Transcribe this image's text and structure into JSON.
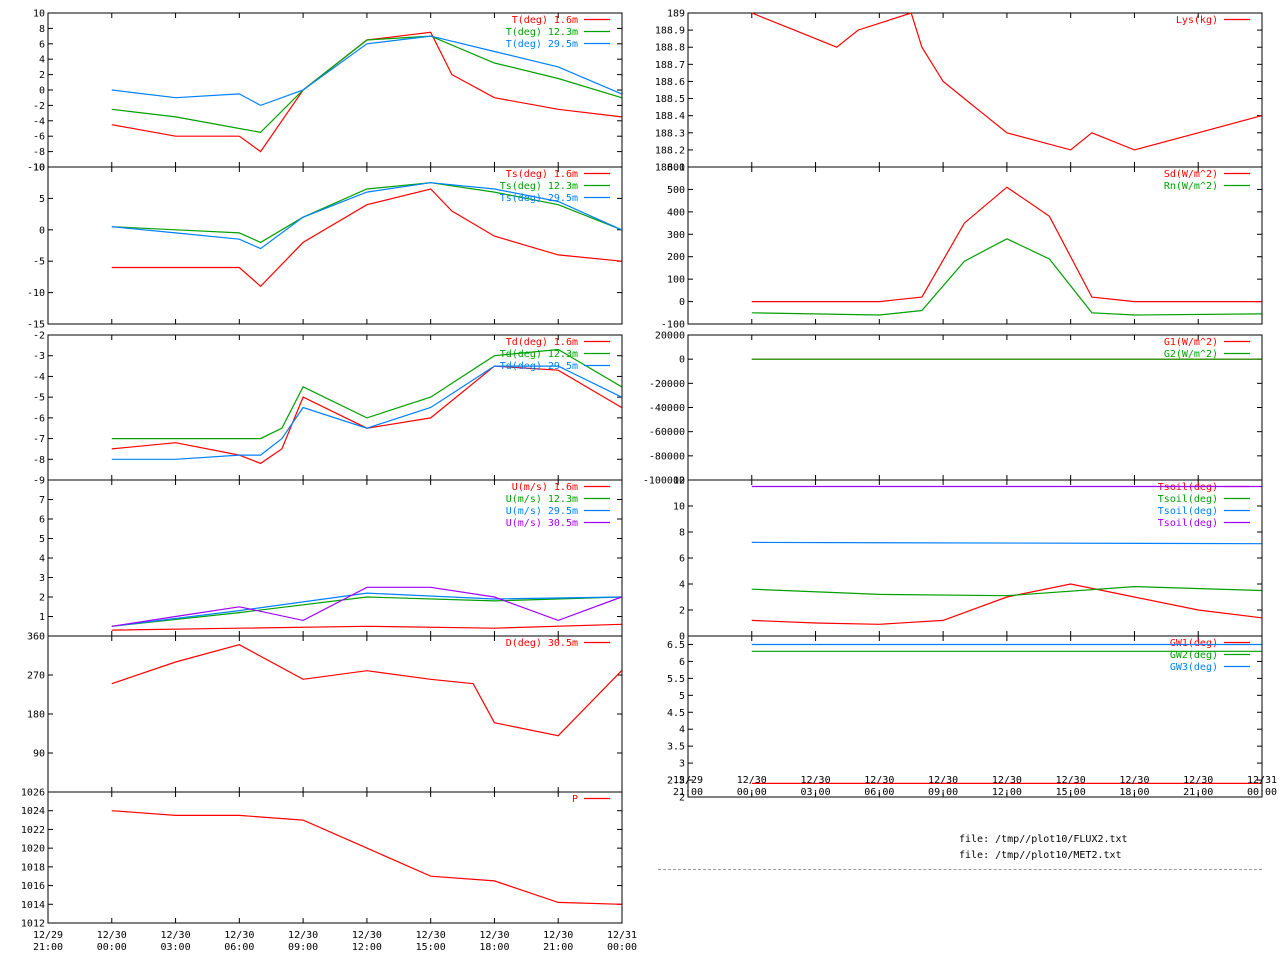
{
  "colors": {
    "red": "#ff0000",
    "green": "#00a000",
    "blue": "#0080ff",
    "magenta": "#a000ff",
    "gray": "#999999"
  },
  "files": [
    "file: /tmp//plot10/FLUX2.txt",
    "file: /tmp//plot10/MET2.txt"
  ],
  "time_axis_left": {
    "dates": [
      "12/29",
      "12/30",
      "12/30",
      "12/30",
      "12/30",
      "12/30",
      "12/30",
      "12/30",
      "12/30",
      "12/31"
    ],
    "times": [
      "21:00",
      "00:00",
      "03:00",
      "06:00",
      "09:00",
      "12:00",
      "15:00",
      "18:00",
      "21:00",
      "00:00"
    ]
  },
  "time_axis_right": {
    "dates": [
      "12/29",
      "12/30",
      "12/30",
      "12/30",
      "12/30",
      "12/30",
      "12/30",
      "12/30",
      "12/30",
      "12/31"
    ],
    "times": [
      "21:00",
      "00:00",
      "03:00",
      "06:00",
      "09:00",
      "12:00",
      "15:00",
      "18:00",
      "21:00",
      "00:00"
    ]
  },
  "chart_data": [
    {
      "type": "line",
      "id": "T",
      "ylim": [
        -10,
        10
      ],
      "yticks": [
        "-10",
        "-8",
        "-6",
        "-4",
        "-2",
        "0",
        "2",
        "4",
        "6",
        "8",
        "10"
      ],
      "series": [
        {
          "name": "T(deg)  1.6m",
          "color": "red",
          "x": [
            "00:00",
            "03:00",
            "06:00",
            "07:00",
            "09:00",
            "12:00",
            "15:00",
            "16:00",
            "18:00",
            "21:00",
            "23:59"
          ],
          "values": [
            -4.5,
            -6,
            -6,
            -8,
            0,
            6.5,
            7.5,
            2,
            -1,
            -2.5,
            -3.5
          ]
        },
        {
          "name": "T(deg) 12.3m",
          "color": "green",
          "x": [
            "00:00",
            "03:00",
            "06:00",
            "07:00",
            "09:00",
            "12:00",
            "15:00",
            "18:00",
            "21:00",
            "23:59"
          ],
          "values": [
            -2.5,
            -3.5,
            -5,
            -5.5,
            0,
            6.5,
            7,
            3.5,
            1.5,
            -1
          ]
        },
        {
          "name": "T(deg) 29.5m",
          "color": "blue",
          "x": [
            "00:00",
            "03:00",
            "06:00",
            "07:00",
            "09:00",
            "12:00",
            "15:00",
            "18:00",
            "21:00",
            "23:59"
          ],
          "values": [
            0,
            -1,
            -0.5,
            -2,
            0,
            6,
            7,
            5,
            3,
            -0.5
          ]
        }
      ]
    },
    {
      "type": "line",
      "id": "Ts",
      "ylim": [
        -15,
        10
      ],
      "yticks": [
        "-15",
        "-10",
        "-5",
        "0",
        "5",
        "10"
      ],
      "series": [
        {
          "name": "Ts(deg)  1.6m",
          "color": "red",
          "x": [
            "00:00",
            "03:00",
            "06:00",
            "07:00",
            "09:00",
            "12:00",
            "15:00",
            "16:00",
            "18:00",
            "21:00",
            "23:59"
          ],
          "values": [
            -6,
            -6,
            -6,
            -9,
            -2,
            4,
            6.5,
            3,
            -1,
            -4,
            -5
          ]
        },
        {
          "name": "Ts(deg) 12.3m",
          "color": "green",
          "x": [
            "00:00",
            "03:00",
            "06:00",
            "07:00",
            "09:00",
            "12:00",
            "15:00",
            "18:00",
            "21:00",
            "23:59"
          ],
          "values": [
            0.5,
            0,
            -0.5,
            -2,
            2,
            6.5,
            7.5,
            6,
            4,
            0
          ]
        },
        {
          "name": "Ts(deg) 29.5m",
          "color": "blue",
          "x": [
            "00:00",
            "03:00",
            "06:00",
            "07:00",
            "09:00",
            "12:00",
            "15:00",
            "18:00",
            "21:00",
            "23:59"
          ],
          "values": [
            0.5,
            -0.5,
            -1.5,
            -3,
            2,
            6,
            7.5,
            6.5,
            4.5,
            0
          ]
        }
      ]
    },
    {
      "type": "line",
      "id": "Td",
      "ylim": [
        -9,
        -2
      ],
      "yticks": [
        "-9",
        "-8",
        "-7",
        "-6",
        "-5",
        "-4",
        "-3",
        "-2"
      ],
      "series": [
        {
          "name": "Td(deg)  1.6m",
          "color": "red",
          "x": [
            "00:00",
            "03:00",
            "06:00",
            "07:00",
            "08:00",
            "09:00",
            "12:00",
            "15:00",
            "18:00",
            "21:00",
            "23:59"
          ],
          "values": [
            -7.5,
            -7.2,
            -7.8,
            -8.2,
            -7.5,
            -5,
            -6.5,
            -6,
            -3.5,
            -3.7,
            -5.5
          ]
        },
        {
          "name": "Td(deg) 12.3m",
          "color": "green",
          "x": [
            "00:00",
            "03:00",
            "06:00",
            "07:00",
            "08:00",
            "09:00",
            "12:00",
            "15:00",
            "18:00",
            "21:00",
            "23:59"
          ],
          "values": [
            -7,
            -7,
            -7,
            -7,
            -6.5,
            -4.5,
            -6,
            -5,
            -3,
            -2.7,
            -4.5
          ]
        },
        {
          "name": "Td(deg) 29.5m",
          "color": "blue",
          "x": [
            "00:00",
            "03:00",
            "06:00",
            "07:00",
            "08:00",
            "09:00",
            "12:00",
            "15:00",
            "18:00",
            "21:00",
            "23:59"
          ],
          "values": [
            -8,
            -8,
            -7.8,
            -7.8,
            -7,
            -5.5,
            -6.5,
            -5.5,
            -3.5,
            -3.5,
            -5
          ]
        }
      ]
    },
    {
      "type": "line",
      "id": "U",
      "ylim": [
        0,
        8
      ],
      "yticks": [
        "1",
        "2",
        "3",
        "4",
        "5",
        "6",
        "7"
      ],
      "series": [
        {
          "name": "U(m/s)  1.6m",
          "color": "red",
          "x": [
            "00:00",
            "06:00",
            "12:00",
            "18:00",
            "23:59"
          ],
          "values": [
            0.3,
            0.4,
            0.5,
            0.4,
            0.6
          ]
        },
        {
          "name": "U(m/s) 12.3m",
          "color": "green",
          "x": [
            "00:00",
            "06:00",
            "12:00",
            "18:00",
            "23:59"
          ],
          "values": [
            0.5,
            1.2,
            2,
            1.8,
            2
          ]
        },
        {
          "name": "U(m/s) 29.5m",
          "color": "blue",
          "x": [
            "00:00",
            "06:00",
            "12:00",
            "18:00",
            "23:59"
          ],
          "values": [
            0.5,
            1.3,
            2.2,
            1.9,
            2
          ]
        },
        {
          "name": "U(m/s) 30.5m",
          "color": "magenta",
          "x": [
            "00:00",
            "03:00",
            "06:00",
            "09:00",
            "12:00",
            "15:00",
            "18:00",
            "21:00",
            "23:59"
          ],
          "values": [
            0.5,
            1,
            1.5,
            0.8,
            2.5,
            2.5,
            2,
            0.8,
            2
          ]
        }
      ]
    },
    {
      "type": "line",
      "id": "D",
      "ylim": [
        0,
        360
      ],
      "yticks": [
        "90",
        "180",
        "270",
        "360"
      ],
      "series": [
        {
          "name": "D(deg)  30.5m",
          "color": "red",
          "x": [
            "00:00",
            "03:00",
            "06:00",
            "09:00",
            "12:00",
            "15:00",
            "17:00",
            "18:00",
            "21:00",
            "23:59"
          ],
          "values": [
            250,
            300,
            340,
            260,
            280,
            260,
            250,
            160,
            130,
            280
          ]
        }
      ]
    },
    {
      "type": "line",
      "id": "P",
      "ylim": [
        1012,
        1026
      ],
      "yticks": [
        "1012",
        "1014",
        "1016",
        "1018",
        "1020",
        "1022",
        "1024",
        "1026"
      ],
      "series": [
        {
          "name": "P",
          "color": "red",
          "x": [
            "00:00",
            "03:00",
            "06:00",
            "09:00",
            "12:00",
            "15:00",
            "18:00",
            "21:00",
            "23:59"
          ],
          "values": [
            1024,
            1023.5,
            1023.5,
            1023,
            1020,
            1017,
            1016.5,
            1014.2,
            1014
          ]
        }
      ]
    },
    {
      "type": "line",
      "id": "Lys",
      "ylim": [
        188.1,
        189
      ],
      "yticks": [
        "188.1",
        "188.2",
        "188.3",
        "188.4",
        "188.5",
        "188.6",
        "188.7",
        "188.8",
        "188.9",
        "189"
      ],
      "series": [
        {
          "name": "Lys(kg)",
          "color": "red",
          "x": [
            "00:00",
            "02:00",
            "04:00",
            "05:00",
            "07:30",
            "08:00",
            "09:00",
            "10:00",
            "11:00",
            "12:00",
            "15:00",
            "16:00",
            "18:00",
            "21:00",
            "23:59"
          ],
          "values": [
            189,
            188.9,
            188.8,
            188.9,
            189,
            188.8,
            188.6,
            188.5,
            188.4,
            188.3,
            188.2,
            188.3,
            188.2,
            188.3,
            188.4
          ]
        }
      ]
    },
    {
      "type": "line",
      "id": "Rad",
      "ylim": [
        -100,
        600
      ],
      "yticks": [
        "-100",
        "0",
        "100",
        "200",
        "300",
        "400",
        "500",
        "600"
      ],
      "series": [
        {
          "name": "Sd(W/m^2)",
          "color": "red",
          "x": [
            "00:00",
            "06:00",
            "08:00",
            "10:00",
            "12:00",
            "14:00",
            "16:00",
            "18:00",
            "23:59"
          ],
          "values": [
            0,
            0,
            20,
            350,
            510,
            380,
            20,
            0,
            0
          ]
        },
        {
          "name": "Rn(W/m^2)",
          "color": "green",
          "x": [
            "00:00",
            "06:00",
            "08:00",
            "10:00",
            "12:00",
            "14:00",
            "16:00",
            "18:00",
            "23:59"
          ],
          "values": [
            -50,
            -60,
            -40,
            180,
            280,
            190,
            -50,
            -60,
            -55
          ]
        }
      ]
    },
    {
      "type": "line",
      "id": "G",
      "ylim": [
        -100000,
        20000
      ],
      "yticks": [
        "-100000",
        "-80000",
        "-60000",
        "-40000",
        "-20000",
        "0",
        "20000"
      ],
      "series": [
        {
          "name": "G1(W/m^2)",
          "color": "red",
          "x": [
            "00:00",
            "23:59"
          ],
          "values": [
            0,
            0
          ]
        },
        {
          "name": "G2(W/m^2)",
          "color": "green",
          "x": [
            "00:00",
            "23:59"
          ],
          "values": [
            0,
            0
          ]
        }
      ]
    },
    {
      "type": "line",
      "id": "Tsoil",
      "ylim": [
        0,
        12
      ],
      "yticks": [
        "0",
        "2",
        "4",
        "6",
        "8",
        "10",
        "12"
      ],
      "series": [
        {
          "name": "Tsoil(deg)",
          "color": "red",
          "x": [
            "00:00",
            "03:00",
            "06:00",
            "09:00",
            "12:00",
            "15:00",
            "18:00",
            "21:00",
            "23:59"
          ],
          "values": [
            1.2,
            1,
            0.9,
            1.2,
            3,
            4,
            3,
            2,
            1.4
          ]
        },
        {
          "name": "Tsoil(deg)",
          "color": "green",
          "x": [
            "00:00",
            "06:00",
            "12:00",
            "18:00",
            "23:59"
          ],
          "values": [
            3.6,
            3.2,
            3.1,
            3.8,
            3.5
          ]
        },
        {
          "name": "Tsoil(deg)",
          "color": "blue",
          "x": [
            "00:00",
            "23:59"
          ],
          "values": [
            7.2,
            7.1
          ]
        },
        {
          "name": "Tsoil(deg)",
          "color": "magenta",
          "x": [
            "00:00",
            "23:59"
          ],
          "values": [
            11.5,
            11.5
          ]
        }
      ]
    },
    {
      "type": "line",
      "id": "GW",
      "ylim": [
        2,
        6.75
      ],
      "yticks": [
        "2",
        "2.5",
        "3",
        "3.5",
        "4",
        "4.5",
        "5",
        "5.5",
        "6",
        "6.5"
      ],
      "series": [
        {
          "name": "GW1(deg)",
          "color": "red",
          "x": [
            "00:00",
            "23:59"
          ],
          "values": [
            2.4,
            2.4
          ]
        },
        {
          "name": "GW2(deg)",
          "color": "green",
          "x": [
            "00:00",
            "23:59"
          ],
          "values": [
            6.3,
            6.3
          ]
        },
        {
          "name": "GW3(deg)",
          "color": "blue",
          "x": [
            "00:00",
            "23:59"
          ],
          "values": [
            6.5,
            6.5
          ]
        }
      ]
    }
  ]
}
